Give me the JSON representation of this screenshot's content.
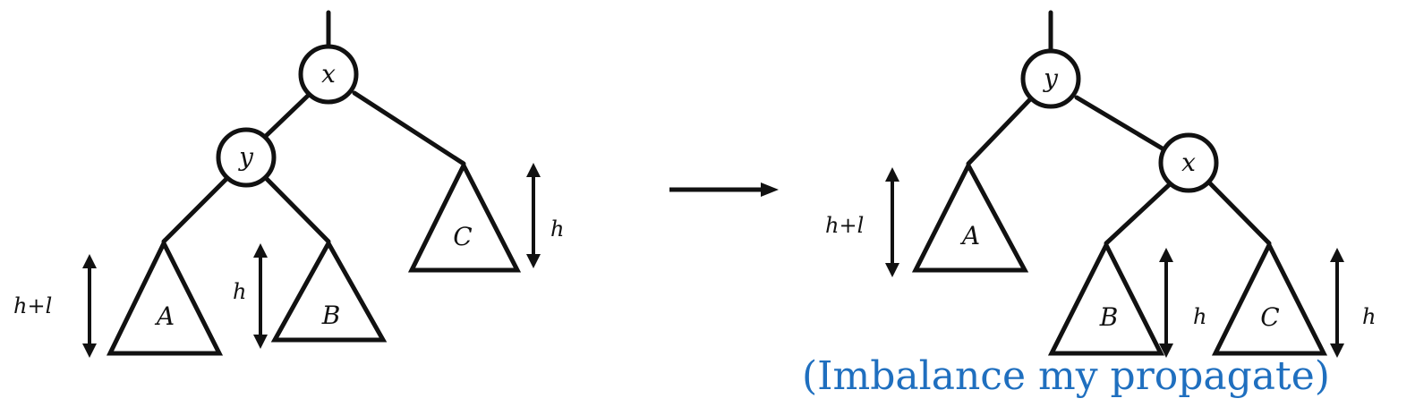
{
  "before": {
    "root": "x",
    "child": "y",
    "subtrees": {
      "a": "A",
      "b": "B",
      "c": "C"
    },
    "heights": {
      "a": "h+l",
      "b": "h",
      "c": "h"
    }
  },
  "after": {
    "root": "y",
    "child": "x",
    "subtrees": {
      "a": "A",
      "b": "B",
      "c": "C"
    },
    "heights": {
      "a": "h+l",
      "b": "h",
      "c": "h"
    }
  },
  "caption": "(Imbalance my propagate)",
  "caption_color": "#1f6fbf"
}
